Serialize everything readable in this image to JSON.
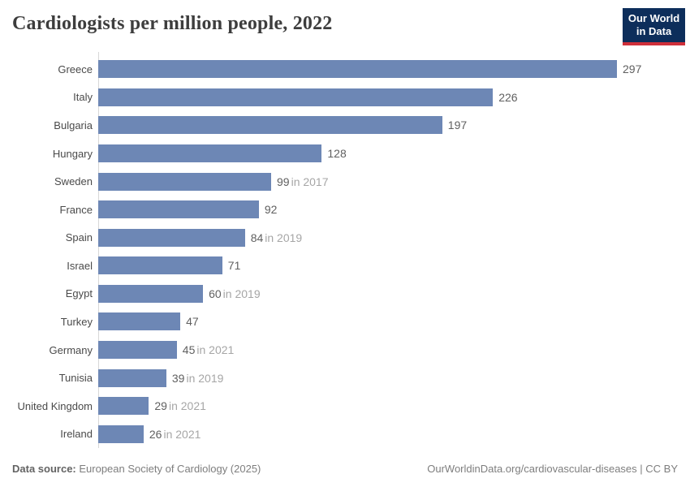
{
  "header": {
    "title": "Cardiologists per million people, 2022",
    "logo": {
      "line1": "Our World",
      "line2": "in Data"
    }
  },
  "chart_data": {
    "type": "bar",
    "orientation": "horizontal",
    "title": "Cardiologists per million people, 2022",
    "categories": [
      "Greece",
      "Italy",
      "Bulgaria",
      "Hungary",
      "Sweden",
      "France",
      "Spain",
      "Israel",
      "Egypt",
      "Turkey",
      "Germany",
      "Tunisia",
      "United Kingdom",
      "Ireland"
    ],
    "values": [
      297,
      226,
      197,
      128,
      99,
      92,
      84,
      71,
      60,
      47,
      45,
      39,
      29,
      26
    ],
    "value_labels": [
      "297",
      "226",
      "197",
      "128",
      "99",
      "92",
      "84",
      "71",
      "60",
      "47",
      "45",
      "39",
      "29",
      "26"
    ],
    "year_notes": [
      "",
      "",
      "",
      "",
      "in 2017",
      "",
      "in 2019",
      "",
      "in 2019",
      "",
      "in 2021",
      "in 2019",
      "in 2021",
      "in 2021"
    ],
    "xlim": [
      0,
      297
    ],
    "bar_color": "#6d87b5",
    "grid": false,
    "legend": false
  },
  "footer": {
    "source_label": "Data source:",
    "source_text": " European Society of Cardiology (2025)",
    "attribution": "OurWorldinData.org/cardiovascular-diseases | CC BY"
  }
}
